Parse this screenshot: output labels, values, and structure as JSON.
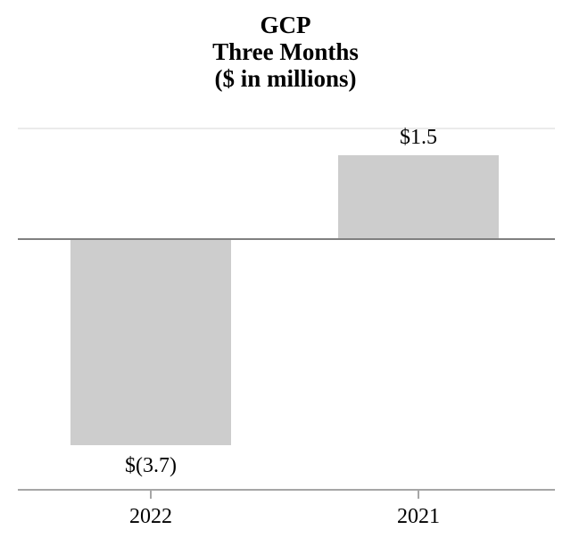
{
  "chart_data": {
    "type": "bar",
    "title_lines": [
      "GCP",
      "Three Months",
      "($ in millions)"
    ],
    "categories": [
      "2022",
      "2021"
    ],
    "values": [
      -3.7,
      1.5
    ],
    "value_labels": [
      "$(3.7)",
      "$1.5"
    ],
    "xlabel": "",
    "ylabel": "",
    "ylim": [
      -4.5,
      2.0
    ],
    "gridline_value": 2.0,
    "grid": "single-top-gridline",
    "legend": "none",
    "bar_color": "#cdcdcd",
    "zero_line_color": "#808080",
    "axis_line_color": "#a6a6a6",
    "gridline_color": "#ebebeb",
    "text_color": "#000000"
  }
}
